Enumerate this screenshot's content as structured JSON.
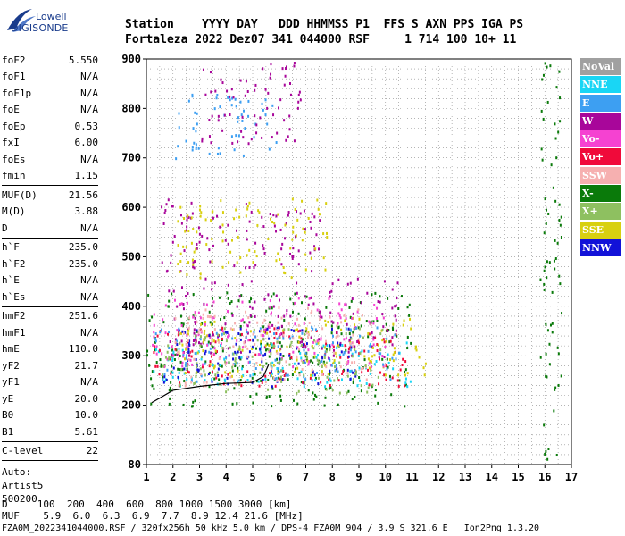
{
  "logo": {
    "line1": "Lowell",
    "line2": "DIGISONDE"
  },
  "header": {
    "row1": "Station    YYYY DAY   DDD HHMMSS P1  FFS S AXN PPS IGA PS",
    "row2": "Fortaleza 2022 Dez07 341 044000 RSF     1 714 100 10+ 11"
  },
  "params": [
    {
      "label": "foF2",
      "value": "5.550"
    },
    {
      "label": "foF1",
      "value": "N/A"
    },
    {
      "label": "foF1p",
      "value": "N/A"
    },
    {
      "label": "foE",
      "value": "N/A"
    },
    {
      "label": "foEp",
      "value": "0.53"
    },
    {
      "label": "fxI",
      "value": "6.00"
    },
    {
      "label": "foEs",
      "value": "N/A"
    },
    {
      "label": "fmin",
      "value": "1.15"
    },
    {
      "sep": true
    },
    {
      "label": "MUF(D)",
      "value": "21.56"
    },
    {
      "label": "M(D)",
      "value": "3.88"
    },
    {
      "label": "D",
      "value": "N/A"
    },
    {
      "sep": true
    },
    {
      "label": "h`F",
      "value": "235.0"
    },
    {
      "label": "h`F2",
      "value": "235.0"
    },
    {
      "label": "h`E",
      "value": "N/A"
    },
    {
      "label": "h`Es",
      "value": "N/A"
    },
    {
      "sep": true
    },
    {
      "label": "hmF2",
      "value": "251.6"
    },
    {
      "label": "hmF1",
      "value": "N/A"
    },
    {
      "label": "hmE",
      "value": "110.0"
    },
    {
      "label": "yF2",
      "value": "21.7"
    },
    {
      "label": "yF1",
      "value": "N/A"
    },
    {
      "label": "yE",
      "value": "20.0"
    },
    {
      "label": "B0",
      "value": "10.0"
    },
    {
      "label": "B1",
      "value": "5.61"
    },
    {
      "sep": true
    },
    {
      "label": "C-level",
      "value": "22"
    },
    {
      "sep": true
    }
  ],
  "autoscale": [
    "Auto:",
    "Artist5",
    "500200"
  ],
  "legend": [
    {
      "name": "NoVal",
      "color": "#a0a0a0"
    },
    {
      "name": "NNE",
      "color": "#19d6f5"
    },
    {
      "name": "E",
      "color": "#3d9ff2"
    },
    {
      "name": "W",
      "color": "#a8069a"
    },
    {
      "name": "Vo-",
      "color": "#f542d1"
    },
    {
      "name": "Vo+",
      "color": "#f00a3a"
    },
    {
      "name": "SSW",
      "color": "#f6b0b0"
    },
    {
      "name": "X-",
      "color": "#0a7a0a"
    },
    {
      "name": "X+",
      "color": "#8ec060"
    },
    {
      "name": "SSE",
      "color": "#d8d010"
    },
    {
      "name": "NNW",
      "color": "#1212d8"
    }
  ],
  "footer": {
    "d_row": "D     100  200  400  600  800 1000 1500 3000 [km]",
    "muf_row": "MUF    5.9  6.0  6.3  6.9  7.7  8.9 12.4 21.6 [MHz]",
    "info_row": "FZA0M_2022341044000.RSF / 320fx256h 50 kHz 5.0 km / DPS-4 FZA0M 904 / 3.9 S 321.6 E   Ion2Png 1.3.20"
  },
  "chart_data": {
    "type": "scatter",
    "title": "",
    "xlabel": "",
    "ylabel": "",
    "xlim": [
      1,
      17
    ],
    "ylim": [
      80,
      900
    ],
    "x_ticks": [
      1,
      2,
      3,
      4,
      5,
      6,
      7,
      8,
      9,
      10,
      11,
      12,
      13,
      14,
      15,
      16,
      17
    ],
    "y_ticks": [
      80,
      200,
      300,
      400,
      500,
      600,
      700,
      800,
      900
    ],
    "grid": true,
    "legend_position": "right",
    "clusters": [
      {
        "name": "X-",
        "xmin": 1.0,
        "xmax": 11.2,
        "ymin": 200,
        "ymax": 430
      },
      {
        "name": "NNE",
        "xmin": 1.0,
        "xmax": 11.0,
        "ymin": 240,
        "ymax": 330
      },
      {
        "name": "Vo+",
        "xmin": 1.2,
        "xmax": 10.8,
        "ymin": 240,
        "ymax": 360
      },
      {
        "name": "W",
        "xmin": 1.8,
        "xmax": 10.5,
        "ymin": 300,
        "ymax": 460
      },
      {
        "name": "SSE",
        "xmin": 2.0,
        "xmax": 11.5,
        "ymin": 260,
        "ymax": 380
      },
      {
        "name": "Vo-",
        "xmin": 1.2,
        "xmax": 10.0,
        "ymin": 280,
        "ymax": 420
      },
      {
        "name": "E",
        "xmin": 1.2,
        "xmax": 10.5,
        "ymin": 250,
        "ymax": 360
      },
      {
        "name": "NNW",
        "xmin": 1.5,
        "xmax": 9.0,
        "ymin": 240,
        "ymax": 360
      },
      {
        "name": "SSW",
        "xmin": 2.0,
        "xmax": 9.5,
        "ymin": 240,
        "ymax": 400
      },
      {
        "name": "X+",
        "xmin": 1.5,
        "xmax": 10.0,
        "ymin": 220,
        "ymax": 360
      },
      {
        "name": "W",
        "xmin": 1.5,
        "xmax": 7.5,
        "ymin": 470,
        "ymax": 620
      },
      {
        "name": "SSE",
        "xmin": 2.0,
        "xmax": 7.8,
        "ymin": 460,
        "ymax": 620
      },
      {
        "name": "E",
        "xmin": 2.0,
        "xmax": 6.0,
        "ymin": 700,
        "ymax": 830
      },
      {
        "name": "W",
        "xmin": 3.0,
        "xmax": 6.8,
        "ymin": 730,
        "ymax": 900
      },
      {
        "name": "X-",
        "xmin": 15.8,
        "xmax": 16.6,
        "ymin": 90,
        "ymax": 900
      }
    ],
    "trace": [
      [
        1.2,
        205
      ],
      [
        2,
        230
      ],
      [
        3,
        238
      ],
      [
        4,
        244
      ],
      [
        5,
        246
      ],
      [
        5.4,
        258
      ],
      [
        5.6,
        282
      ]
    ]
  }
}
